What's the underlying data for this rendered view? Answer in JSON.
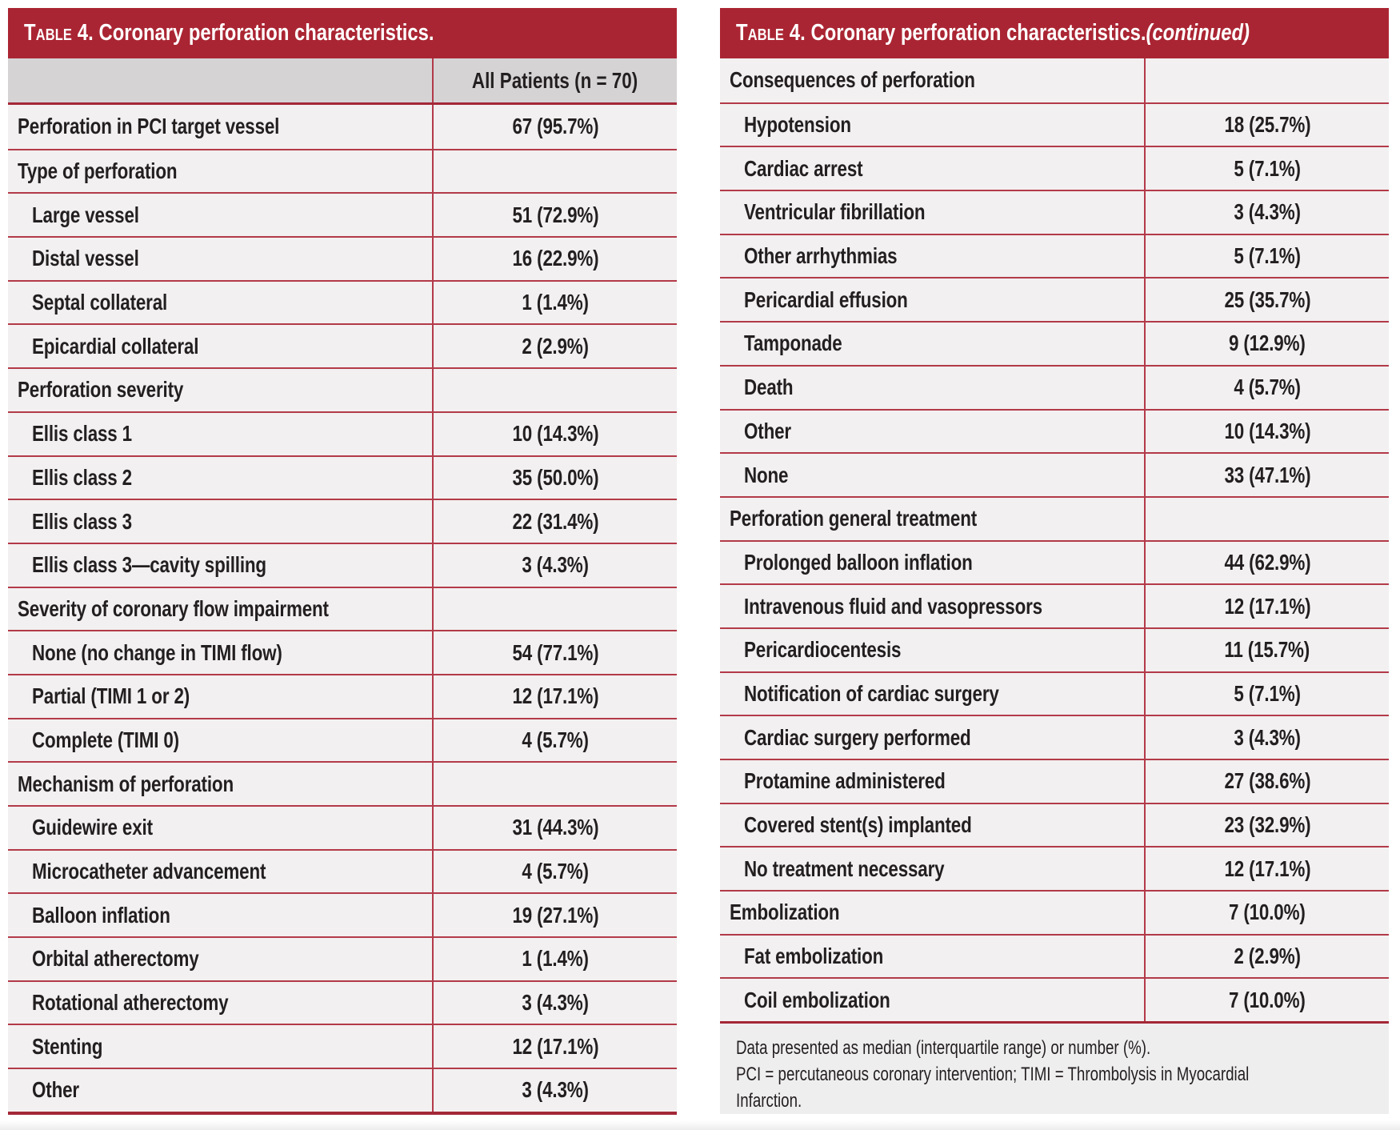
{
  "palette": {
    "header_bg": "#AA2533",
    "row_border": "#B33A49",
    "dark_border": "#A32837",
    "row_bg": "#F2F0F0",
    "subheader_bg": "#D5D3D4",
    "footnote_bg": "#EFEEEE",
    "text": "#231F20",
    "header_text": "#FFFFFF"
  },
  "tables": [
    {
      "heading": {
        "smallcaps": "Table 4.",
        "title": " Coronary perforation characteristics.",
        "continued": ""
      },
      "subheader": {
        "label": "",
        "value": "All Patients (n = 70)"
      },
      "rows": [
        {
          "label": "Perforation in PCI target vessel",
          "value": "67 (95.7%)",
          "indent": 0
        },
        {
          "label": "Type of perforation",
          "value": "",
          "indent": 0
        },
        {
          "label": "Large vessel",
          "value": "51 (72.9%)",
          "indent": 1
        },
        {
          "label": "Distal vessel",
          "value": "16 (22.9%)",
          "indent": 1
        },
        {
          "label": "Septal collateral",
          "value": "1 (1.4%)",
          "indent": 1
        },
        {
          "label": "Epicardial collateral",
          "value": "2 (2.9%)",
          "indent": 1
        },
        {
          "label": "Perforation severity",
          "value": "",
          "indent": 0
        },
        {
          "label": "Ellis class 1",
          "value": "10 (14.3%)",
          "indent": 1
        },
        {
          "label": "Ellis class 2",
          "value": "35 (50.0%)",
          "indent": 1
        },
        {
          "label": "Ellis class 3",
          "value": "22 (31.4%)",
          "indent": 1
        },
        {
          "label": "Ellis class 3—cavity spilling",
          "value": "3 (4.3%)",
          "indent": 1
        },
        {
          "label": "Severity of coronary flow impairment",
          "value": "",
          "indent": 0
        },
        {
          "label": "None (no change in TIMI flow)",
          "value": "54 (77.1%)",
          "indent": 1
        },
        {
          "label": "Partial (TIMI 1 or 2)",
          "value": "12 (17.1%)",
          "indent": 1
        },
        {
          "label": "Complete (TIMI 0)",
          "value": "4 (5.7%)",
          "indent": 1
        },
        {
          "label": "Mechanism of perforation",
          "value": "",
          "indent": 0
        },
        {
          "label": "Guidewire exit",
          "value": "31 (44.3%)",
          "indent": 1
        },
        {
          "label": "Microcatheter advancement",
          "value": "4 (5.7%)",
          "indent": 1
        },
        {
          "label": "Balloon inflation",
          "value": "19 (27.1%)",
          "indent": 1
        },
        {
          "label": "Orbital atherectomy",
          "value": "1 (1.4%)",
          "indent": 1
        },
        {
          "label": "Rotational atherectomy",
          "value": "3 (4.3%)",
          "indent": 1
        },
        {
          "label": "Stenting",
          "value": "12 (17.1%)",
          "indent": 1
        },
        {
          "label": "Other",
          "value": "3 (4.3%)",
          "indent": 1
        }
      ]
    },
    {
      "heading": {
        "smallcaps": "Table 4.",
        "title": " Coronary perforation characteristics.",
        "continued": "(continued)"
      },
      "rows": [
        {
          "label": "Consequences of perforation",
          "value": "",
          "indent": 0
        },
        {
          "label": "Hypotension",
          "value": "18 (25.7%)",
          "indent": 1
        },
        {
          "label": "Cardiac arrest",
          "value": "5 (7.1%)",
          "indent": 1
        },
        {
          "label": "Ventricular fibrillation",
          "value": "3 (4.3%)",
          "indent": 1
        },
        {
          "label": "Other arrhythmias",
          "value": "5 (7.1%)",
          "indent": 1
        },
        {
          "label": "Pericardial effusion",
          "value": "25 (35.7%)",
          "indent": 1
        },
        {
          "label": "Tamponade",
          "value": "9 (12.9%)",
          "indent": 1
        },
        {
          "label": "Death",
          "value": "4 (5.7%)",
          "indent": 1
        },
        {
          "label": "Other",
          "value": "10 (14.3%)",
          "indent": 1
        },
        {
          "label": "None",
          "value": "33 (47.1%)",
          "indent": 1
        },
        {
          "label": "Perforation general treatment",
          "value": "",
          "indent": 0
        },
        {
          "label": "Prolonged balloon inflation",
          "value": "44 (62.9%)",
          "indent": 1
        },
        {
          "label": "Intravenous fluid and vasopressors",
          "value": "12 (17.1%)",
          "indent": 1
        },
        {
          "label": "Pericardiocentesis",
          "value": "11 (15.7%)",
          "indent": 1
        },
        {
          "label": "Notification of cardiac surgery",
          "value": "5 (7.1%)",
          "indent": 1
        },
        {
          "label": "Cardiac surgery performed",
          "value": "3 (4.3%)",
          "indent": 1
        },
        {
          "label": "Protamine administered",
          "value": "27 (38.6%)",
          "indent": 1
        },
        {
          "label": "Covered stent(s) implanted",
          "value": "23 (32.9%)",
          "indent": 1
        },
        {
          "label": "No treatment necessary",
          "value": "12 (17.1%)",
          "indent": 1
        },
        {
          "label": "Embolization",
          "value": "7 (10.0%)",
          "indent": 0
        },
        {
          "label": "Fat embolization",
          "value": "2 (2.9%)",
          "indent": 1
        },
        {
          "label": "Coil embolization",
          "value": "7 (10.0%)",
          "indent": 1
        }
      ],
      "footnote": [
        "Data presented as median (interquartile range) or number (%).",
        "PCI = percutaneous coronary intervention; TIMI = Thrombolysis in Myocardial",
        "Infarction."
      ]
    }
  ]
}
